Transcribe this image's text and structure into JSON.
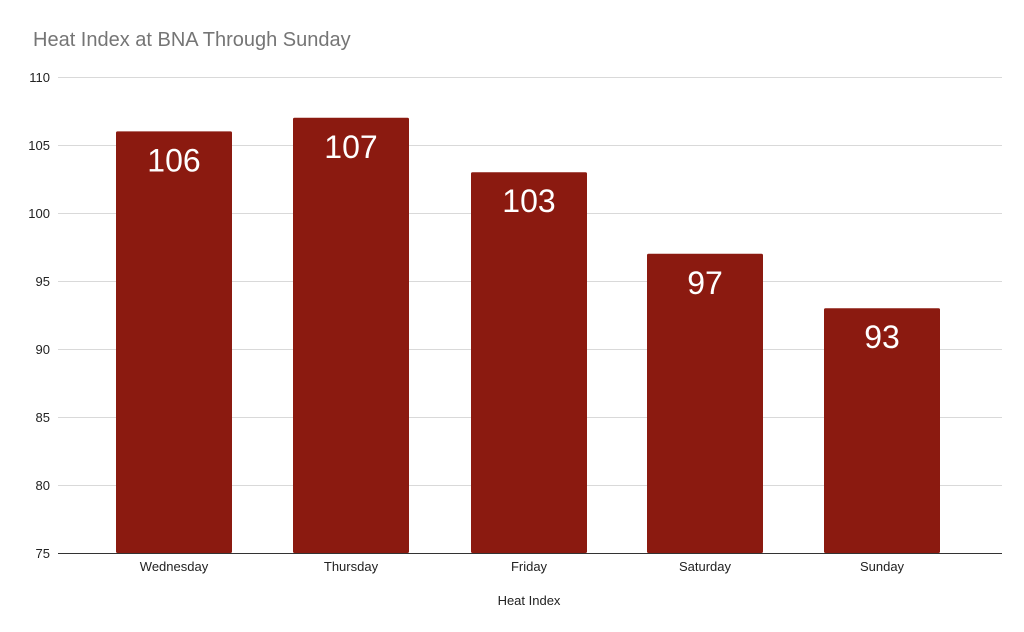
{
  "chart_data": {
    "type": "bar",
    "title": "Heat Index at BNA Through Sunday",
    "xlabel": "Heat Index",
    "ylabel": "",
    "categories": [
      "Wednesday",
      "Thursday",
      "Friday",
      "Saturday",
      "Sunday"
    ],
    "values": [
      106,
      107,
      103,
      97,
      93
    ],
    "data_labels": [
      "106",
      "107",
      "103",
      "97",
      "93"
    ],
    "ylim": [
      75,
      110
    ],
    "yticks": [
      "75",
      "80",
      "85",
      "90",
      "95",
      "100",
      "105",
      "110"
    ],
    "grid": true,
    "legend": "none",
    "bar_color": "#8b1a10"
  }
}
